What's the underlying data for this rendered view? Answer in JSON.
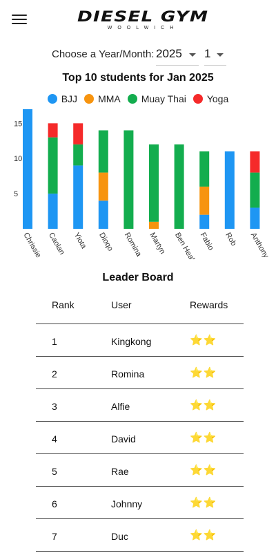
{
  "header": {
    "logo_main": "DIESEL GYM",
    "logo_sub": "WOOLWICH"
  },
  "picker": {
    "label": "Choose a Year/Month:",
    "year": "2025",
    "month": "1"
  },
  "chart_data": {
    "type": "bar",
    "stacked": true,
    "title": "Top 10 students for Jan 2025",
    "categories": [
      "Chrissie",
      "Caolan",
      "Yiota",
      "Dioqo",
      "Romina",
      "Martyn",
      "Ben Healy",
      "Fabio",
      "Rob",
      "Anthony"
    ],
    "series": [
      {
        "name": "BJJ",
        "color": "#1e96f3",
        "values": [
          17,
          5,
          9,
          4,
          0,
          0,
          0,
          2,
          11,
          3
        ]
      },
      {
        "name": "MMA",
        "color": "#f7940f",
        "values": [
          0,
          0,
          0,
          4,
          0,
          1,
          0,
          4,
          0,
          0
        ]
      },
      {
        "name": "Muay Thai",
        "color": "#13ad4e",
        "values": [
          0,
          8,
          3,
          6,
          14,
          11,
          12,
          5,
          0,
          5
        ]
      },
      {
        "name": "Yoga",
        "color": "#f52a2a",
        "values": [
          0,
          2,
          3,
          0,
          0,
          0,
          0,
          0,
          0,
          3
        ]
      }
    ],
    "yticks": [
      5,
      10,
      15
    ],
    "ylim": [
      0,
      17
    ],
    "grid": false,
    "legend": "top"
  },
  "leaderboard": {
    "title": "Leader Board",
    "headers": {
      "rank": "Rank",
      "user": "User",
      "rewards": "Rewards"
    },
    "rows": [
      {
        "rank": "1",
        "user": "Kingkong",
        "rewards": "⭐⭐"
      },
      {
        "rank": "2",
        "user": "Romina",
        "rewards": "⭐⭐"
      },
      {
        "rank": "3",
        "user": "Alfie",
        "rewards": "⭐⭐"
      },
      {
        "rank": "4",
        "user": "David",
        "rewards": "⭐⭐"
      },
      {
        "rank": "5",
        "user": "Rae",
        "rewards": "⭐⭐"
      },
      {
        "rank": "6",
        "user": "Johnny",
        "rewards": "⭐⭐"
      },
      {
        "rank": "7",
        "user": "Duc",
        "rewards": "⭐⭐"
      }
    ]
  }
}
